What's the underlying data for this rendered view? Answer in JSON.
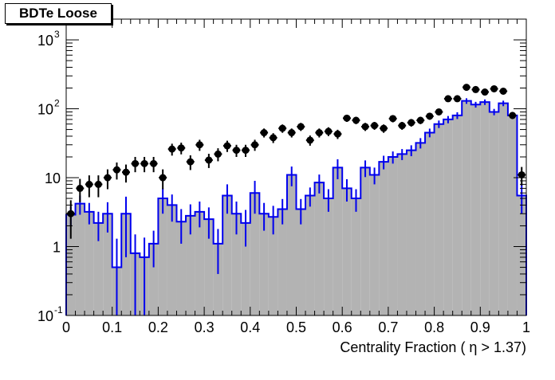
{
  "chart_data": {
    "type": "histogram",
    "title": "BDTe Loose",
    "xlabel": "Centrality Fraction ( η > 1.37)",
    "ylabel": "",
    "xlim": [
      0,
      1
    ],
    "ylim": [
      0.1,
      2000
    ],
    "yscale": "log",
    "x_ticks": [
      {
        "value": 0,
        "label": "0"
      },
      {
        "value": 0.1,
        "label": "0.1"
      },
      {
        "value": 0.2,
        "label": "0.2"
      },
      {
        "value": 0.3,
        "label": "0.3"
      },
      {
        "value": 0.4,
        "label": "0.4"
      },
      {
        "value": 0.5,
        "label": "0.5"
      },
      {
        "value": 0.6,
        "label": "0.6"
      },
      {
        "value": 0.7,
        "label": "0.7"
      },
      {
        "value": 0.8,
        "label": "0.8"
      },
      {
        "value": 0.9,
        "label": "0.9"
      },
      {
        "value": 1,
        "label": "1"
      }
    ],
    "y_ticks": [
      {
        "value": 0.1,
        "base": "10",
        "exp": "-1"
      },
      {
        "value": 1,
        "base": "1",
        "exp": ""
      },
      {
        "value": 10,
        "base": "10",
        "exp": ""
      },
      {
        "value": 100,
        "base": "10",
        "exp": "2"
      },
      {
        "value": 1000,
        "base": "10",
        "exp": "3"
      }
    ],
    "bins": {
      "start": 0,
      "width": 0.02,
      "count": 50
    },
    "series": [
      {
        "style": "filled-histogram",
        "color": "#b3b3b3",
        "values": [
          2.9,
          4.2,
          3.2,
          2.2,
          3.0,
          0.5,
          3.0,
          0.8,
          0.7,
          1.1,
          5.0,
          4.0,
          2.3,
          2.8,
          3.2,
          2.5,
          1.1,
          5.5,
          3.0,
          2.2,
          6.0,
          3.0,
          2.7,
          3.5,
          11.0,
          3.5,
          5.5,
          8.5,
          5.0,
          14.0,
          7.0,
          5.0,
          14.0,
          11.0,
          17.0,
          20.0,
          22.0,
          25.0,
          32.0,
          45.0,
          60.0,
          70.0,
          80.0,
          130.0,
          115.0,
          125.0,
          90.0,
          120.0,
          80.0,
          5.5
        ]
      },
      {
        "style": "outline-histogram",
        "color": "#0000ee",
        "values": [
          2.9,
          4.2,
          3.2,
          2.2,
          3.0,
          0.5,
          3.0,
          0.8,
          0.7,
          1.1,
          5.0,
          4.0,
          2.3,
          2.8,
          3.2,
          2.5,
          1.1,
          5.5,
          3.0,
          2.2,
          6.0,
          3.0,
          2.7,
          3.5,
          11.0,
          3.5,
          5.5,
          8.5,
          5.0,
          14.0,
          7.0,
          5.0,
          14.0,
          11.0,
          17.0,
          20.0,
          22.0,
          25.0,
          32.0,
          45.0,
          60.0,
          70.0,
          80.0,
          130.0,
          115.0,
          125.0,
          90.0,
          120.0,
          80.0,
          5.5
        ],
        "errors": [
          0.9,
          1.3,
          1.1,
          1.0,
          1.4,
          0.8,
          2.3,
          0.7,
          0.65,
          0.6,
          2.0,
          1.7,
          1.2,
          1.3,
          1.3,
          1.2,
          0.7,
          2.5,
          1.5,
          1.2,
          3.0,
          1.3,
          1.2,
          1.4,
          3.5,
          1.4,
          1.7,
          2.6,
          1.8,
          4.5,
          2.5,
          1.8,
          3.8,
          3.0,
          3.8,
          4.0,
          4.0,
          4.5,
          5.5,
          6.5,
          7.5,
          8.5,
          9.0,
          12.0,
          11.0,
          11.5,
          9.5,
          11.0,
          9.0,
          2.5
        ]
      },
      {
        "style": "data-points",
        "color": "#000000",
        "x": [
          0.01,
          0.03,
          0.05,
          0.07,
          0.09,
          0.11,
          0.13,
          0.15,
          0.17,
          0.19,
          0.21,
          0.23,
          0.25,
          0.27,
          0.29,
          0.31,
          0.33,
          0.35,
          0.37,
          0.39,
          0.41,
          0.43,
          0.45,
          0.47,
          0.49,
          0.51,
          0.53,
          0.55,
          0.57,
          0.59,
          0.61,
          0.63,
          0.65,
          0.67,
          0.69,
          0.71,
          0.73,
          0.75,
          0.77,
          0.79,
          0.81,
          0.83,
          0.85,
          0.87,
          0.89,
          0.91,
          0.93,
          0.95,
          0.97,
          0.99
        ],
        "y": [
          3.0,
          7.0,
          8.0,
          8.0,
          10.0,
          13.0,
          12.0,
          16.0,
          16.0,
          16.0,
          10.0,
          26.0,
          27.0,
          17.0,
          30.0,
          18.0,
          22.0,
          29.0,
          25.0,
          25.0,
          30.0,
          45.0,
          38.0,
          52.0,
          45.0,
          55.0,
          35.0,
          45.0,
          47.0,
          43.0,
          73.0,
          68.0,
          55.0,
          57.0,
          52.0,
          72.0,
          57.0,
          63.0,
          68.0,
          78.0,
          90.0,
          140.0,
          140.0,
          205.0,
          190.0,
          175.0,
          195.0,
          180.0,
          80.0,
          11.0
        ],
        "errors": [
          1.7,
          2.6,
          2.8,
          2.8,
          3.2,
          3.6,
          3.5,
          4.0,
          4.0,
          4.0,
          3.2,
          5.1,
          5.2,
          4.1,
          5.5,
          4.2,
          4.7,
          5.4,
          5.0,
          5.0,
          5.5,
          6.7,
          6.2,
          7.2,
          6.7,
          7.4,
          5.9,
          6.7,
          6.9,
          6.6,
          8.5,
          8.2,
          7.4,
          7.5,
          7.2,
          8.5,
          7.5,
          7.9,
          8.2,
          8.8,
          9.5,
          11.8,
          11.8,
          14.3,
          13.8,
          13.2,
          14.0,
          13.4,
          8.9,
          3.3
        ]
      }
    ],
    "grid": false,
    "legend": "none"
  }
}
